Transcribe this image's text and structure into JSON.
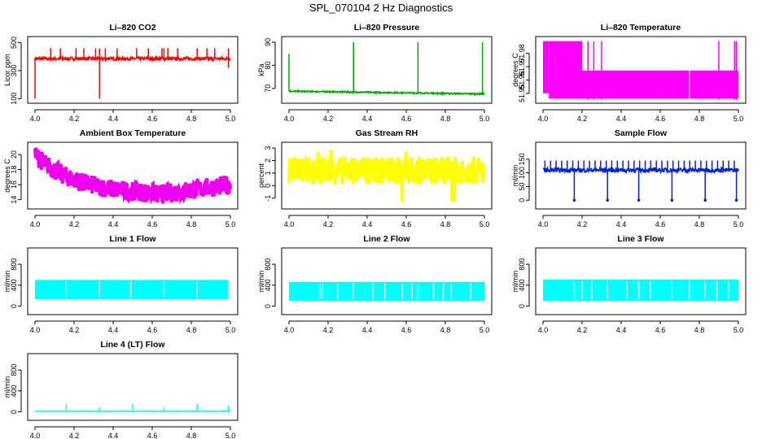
{
  "title": "SPL_070104  2 Hz Diagnostics",
  "chart_data": [
    {
      "type": "line",
      "title": "Li–820 CO2",
      "ylabel": "Licor ppm",
      "color": "#ff0000",
      "xlim": [
        4.0,
        5.0
      ],
      "xticks": [
        "4.0",
        "4.2",
        "4.4",
        "4.6",
        "4.8",
        "5.0"
      ],
      "xtick_values": [
        4.0,
        4.2,
        4.4,
        4.6,
        4.8,
        5.0
      ],
      "ylim": [
        90,
        520
      ],
      "yticks": [
        "100",
        "300",
        "500"
      ],
      "ytick_values": [
        100,
        300,
        500
      ],
      "series": [
        {
          "name": "CO2",
          "pattern": "baseline_spikes",
          "baseline": 385,
          "noise": 12,
          "spikes_up": [
            4.08,
            4.13,
            4.21,
            4.25,
            4.31,
            4.33,
            4.36,
            4.42,
            4.52,
            4.58,
            4.65,
            4.66,
            4.68,
            4.73,
            4.83,
            4.88,
            4.92,
            4.99
          ],
          "spike_up_value": 460,
          "spikes_down": [
            4.0,
            4.33,
            4.99
          ],
          "spike_down_values": [
            100,
            100,
            320
          ]
        }
      ]
    },
    {
      "type": "line",
      "title": "Li–820 Pressure",
      "ylabel": "kPa",
      "color": "#00aa00",
      "xlim": [
        4.0,
        5.0
      ],
      "xticks": [
        "4.0",
        "4.2",
        "4.4",
        "4.6",
        "4.8",
        "5.0"
      ],
      "xtick_values": [
        4.0,
        4.2,
        4.4,
        4.6,
        4.8,
        5.0
      ],
      "ylim": [
        65,
        91
      ],
      "yticks": [
        "70",
        "80",
        "90"
      ],
      "ytick_values": [
        70,
        80,
        90
      ],
      "series": [
        {
          "name": "Pressure",
          "pattern": "drift_spikes",
          "start": 68.8,
          "end": 67.6,
          "noise": 0.3,
          "spikes_up": [
            4.0,
            4.33,
            4.66,
            4.99
          ],
          "spike_up_values": [
            85,
            90,
            90,
            90
          ]
        }
      ]
    },
    {
      "type": "area",
      "title": "Li–820 Temperature",
      "ylabel": "degrees C",
      "color": "#ff00ff",
      "xlim": [
        4.0,
        5.0
      ],
      "xticks": [
        "4.0",
        "4.2",
        "4.4",
        "4.6",
        "4.8",
        "5.0"
      ],
      "xtick_values": [
        4.0,
        4.2,
        4.4,
        4.6,
        4.8,
        5.0
      ],
      "ylim": [
        51.945,
        51.99
      ],
      "yticks": [
        "51.95",
        "51.96",
        "51.97",
        "51.98"
      ],
      "ytick_values": [
        51.95,
        51.96,
        51.97,
        51.98
      ],
      "series": [
        {
          "name": "Temperature",
          "pattern": "band_steps",
          "segments": [
            {
              "x0": 4.0,
              "x1": 4.03,
              "lo": 51.95,
              "hi": 51.989
            },
            {
              "x0": 4.03,
              "x1": 4.2,
              "lo": 51.946,
              "hi": 51.989
            },
            {
              "x0": 4.2,
              "x1": 5.0,
              "lo": 51.946,
              "hi": 51.967
            }
          ],
          "spikes_up": [
            4.23,
            4.26,
            4.3,
            4.9,
            4.98,
            4.99
          ],
          "spike_up_value": 51.989
        }
      ]
    },
    {
      "type": "line",
      "title": "Ambient Box Temperature",
      "ylabel": "degrees C",
      "color": "#ee00ee",
      "xlim": [
        4.0,
        5.0
      ],
      "xticks": [
        "4.0",
        "4.2",
        "4.4",
        "4.6",
        "4.8",
        "5.0"
      ],
      "xtick_values": [
        4.0,
        4.2,
        4.4,
        4.6,
        4.8,
        5.0
      ],
      "ylim": [
        13.2,
        21.2
      ],
      "yticks": [
        "14",
        "16",
        "18",
        "20"
      ],
      "ytick_values": [
        14,
        16,
        18,
        20
      ],
      "series": [
        {
          "name": "Box temperature",
          "pattern": "decay_band",
          "start": 20.0,
          "min": 15.0,
          "min_x": 4.62,
          "end": 16.0,
          "noise": 1.3
        }
      ]
    },
    {
      "type": "line",
      "title": "Gas Stream RH",
      "ylabel": "percent",
      "color": "#ffff00",
      "xlim": [
        4.0,
        5.0
      ],
      "xticks": [
        "4.0",
        "4.2",
        "4.4",
        "4.6",
        "4.8",
        "5.0"
      ],
      "xtick_values": [
        4.0,
        4.2,
        4.4,
        4.6,
        4.8,
        5.0
      ],
      "ylim": [
        -1.6,
        3.2
      ],
      "yticks": [
        "-1",
        "0",
        "1",
        "2",
        "3"
      ],
      "ytick_values": [
        -1,
        0,
        1,
        2,
        3
      ],
      "series": [
        {
          "name": "RH",
          "pattern": "noise_band",
          "center": 1.2,
          "noise": 1.1,
          "extreme_lo": -1.3,
          "extreme_hi": 2.7
        }
      ]
    },
    {
      "type": "line",
      "title": "Sample Flow",
      "ylabel": "ml/min",
      "color": "#0022dd",
      "xlim": [
        4.0,
        5.0
      ],
      "xticks": [
        "4.0",
        "4.2",
        "4.4",
        "4.6",
        "4.8",
        "5.0"
      ],
      "xtick_values": [
        4.0,
        4.2,
        4.4,
        4.6,
        4.8,
        5.0
      ],
      "ylim": [
        -20,
        200
      ],
      "yticks": [
        "0",
        "50",
        "100",
        "150"
      ],
      "ytick_values": [
        0,
        50,
        100,
        150
      ],
      "series": [
        {
          "name": "Sample flow",
          "pattern": "baseline_spikes",
          "baseline": 110,
          "noise": 8,
          "spikes_up_regular": 0.0285,
          "spike_up_value": 145,
          "spikes_down": [
            4.16,
            4.33,
            4.49,
            4.66,
            4.83,
            4.99
          ],
          "spike_down_values": [
            0,
            0,
            0,
            0,
            0,
            0
          ]
        }
      ]
    },
    {
      "type": "area",
      "title": "Line 1 Flow",
      "ylabel": "ml/min",
      "color": "#00ffff",
      "xlim": [
        4.0,
        5.0
      ],
      "xticks": [
        "4.0",
        "4.2",
        "4.4",
        "4.6",
        "4.8",
        "5.0"
      ],
      "xtick_values": [
        4.0,
        4.2,
        4.4,
        4.6,
        4.8,
        5.0
      ],
      "ylim": [
        -100,
        1050
      ],
      "yticks": [
        "0",
        "400",
        "800"
      ],
      "ytick_values": [
        0,
        400,
        800
      ],
      "series": [
        {
          "name": "Line 1 flow",
          "pattern": "block_band",
          "x0": 4.0,
          "x1": 4.99,
          "lo": 130,
          "hi": 500,
          "gaps": [
            4.16,
            4.33,
            4.49,
            4.66,
            4.83
          ]
        }
      ]
    },
    {
      "type": "area",
      "title": "Line 2 Flow",
      "ylabel": "ml/min",
      "color": "#00ffff",
      "xlim": [
        4.0,
        5.0
      ],
      "xticks": [
        "4.0",
        "4.2",
        "4.4",
        "4.6",
        "4.8",
        "5.0"
      ],
      "xtick_values": [
        4.0,
        4.2,
        4.4,
        4.6,
        4.8,
        5.0
      ],
      "ylim": [
        -100,
        1050
      ],
      "yticks": [
        "0",
        "400",
        "800"
      ],
      "ytick_values": [
        0,
        400,
        800
      ],
      "series": [
        {
          "name": "Line 2 flow",
          "pattern": "block_band",
          "x0": 4.0,
          "x1": 5.0,
          "lo": 100,
          "hi": 460,
          "gaps": [
            4.16,
            4.17,
            4.25,
            4.33,
            4.43,
            4.49,
            4.58,
            4.63,
            4.66,
            4.74,
            4.79,
            4.83,
            4.93
          ]
        }
      ]
    },
    {
      "type": "area",
      "title": "Line 3 Flow",
      "ylabel": "ml/min",
      "color": "#00ffff",
      "xlim": [
        4.0,
        5.0
      ],
      "xticks": [
        "4.0",
        "4.2",
        "4.4",
        "4.6",
        "4.8",
        "5.0"
      ],
      "xtick_values": [
        4.0,
        4.2,
        4.4,
        4.6,
        4.8,
        5.0
      ],
      "ylim": [
        -100,
        1050
      ],
      "yticks": [
        "0",
        "400",
        "800"
      ],
      "ytick_values": [
        0,
        400,
        800
      ],
      "series": [
        {
          "name": "Line 3 flow",
          "pattern": "block_band",
          "x0": 4.0,
          "x1": 5.0,
          "lo": 100,
          "hi": 510,
          "gaps": [
            4.16,
            4.2,
            4.25,
            4.33,
            4.43,
            4.49,
            4.55,
            4.66,
            4.75,
            4.83,
            4.89,
            4.95
          ]
        }
      ]
    },
    {
      "type": "line",
      "title": "Line 4 (LT) Flow",
      "ylabel": "ml/min",
      "color": "#00ffff",
      "xlim": [
        4.0,
        5.0
      ],
      "xticks": [
        "4.0",
        "4.2",
        "4.4",
        "4.6",
        "4.8",
        "5.0"
      ],
      "xtick_values": [
        4.0,
        4.2,
        4.4,
        4.6,
        4.8,
        5.0
      ],
      "ylim": [
        -100,
        1050
      ],
      "yticks": [
        "0",
        "400",
        "800"
      ],
      "ytick_values": [
        0,
        400,
        800
      ],
      "series": [
        {
          "name": "Line 4 flow",
          "pattern": "baseline_spikes",
          "baseline": 10,
          "noise": 2,
          "spikes_up": [
            4.16,
            4.33,
            4.5,
            4.66,
            4.83,
            4.99
          ],
          "spike_up_values": [
            150,
            80,
            150,
            90,
            150,
            120
          ]
        }
      ]
    }
  ]
}
